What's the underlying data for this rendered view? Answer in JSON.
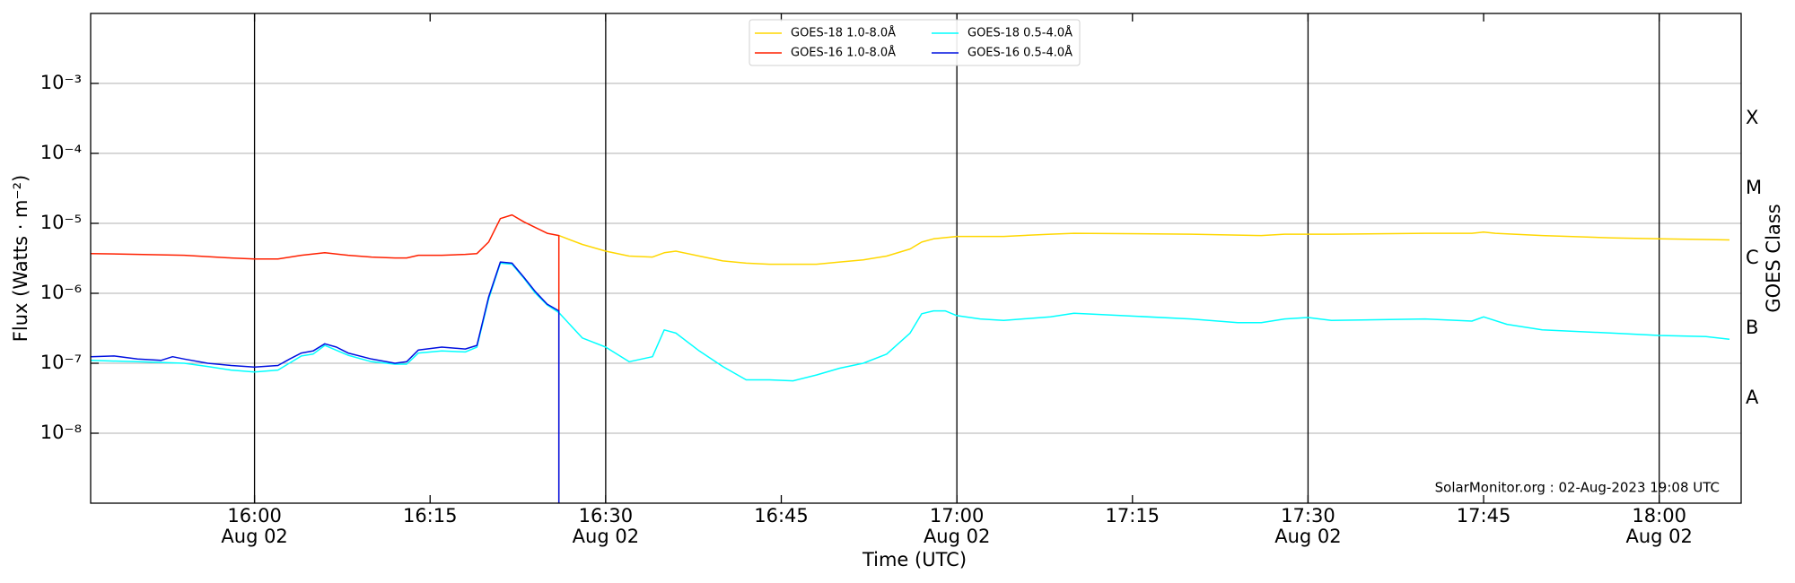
{
  "chart_data": {
    "type": "line",
    "xlabel": "Time (UTC)",
    "ylabel": "Flux (Watts · m⁻²)",
    "y2label": "GOES Class",
    "annotation": "SolarMonitor.org : 02-Aug-2023 19:08 UTC",
    "log_y": true,
    "grid": true,
    "legend": "upper center",
    "xlim": [
      "15:46",
      "18:07"
    ],
    "xticks": [
      "16:00",
      "16:15",
      "16:30",
      "16:45",
      "17:00",
      "17:15",
      "17:30",
      "17:45",
      "18:00"
    ],
    "xtick_dates": [
      "Aug 02",
      null,
      "Aug 02",
      null,
      "Aug 02",
      null,
      "Aug 02",
      null,
      "Aug 02"
    ],
    "vlines": [
      "16:00",
      "16:30",
      "17:00",
      "17:30",
      "18:00"
    ],
    "ylim": [
      1e-09,
      0.01
    ],
    "yticks": [
      {
        "value": 1e-08,
        "label": "10⁻⁸"
      },
      {
        "value": 1e-07,
        "label": "10⁻⁷"
      },
      {
        "value": 1e-06,
        "label": "10⁻⁶"
      },
      {
        "value": 1e-05,
        "label": "10⁻⁵"
      },
      {
        "value": 0.0001,
        "label": "10⁻⁴"
      },
      {
        "value": 0.001,
        "label": "10⁻³"
      }
    ],
    "y2lim": [
      1e-09,
      0.01
    ],
    "y2ticks": [
      {
        "value": 3.16e-08,
        "label": "A"
      },
      {
        "value": 3.16e-07,
        "label": "B"
      },
      {
        "value": 3.16e-06,
        "label": "C"
      },
      {
        "value": 3.16e-05,
        "label": "M"
      },
      {
        "value": 0.000316,
        "label": "X"
      }
    ],
    "series": [
      {
        "name": "GOES-18 1.0-8.0Å",
        "color": "#ffd700",
        "x": [
          "16:26",
          "16:28",
          "16:30",
          "16:32",
          "16:34",
          "16:35",
          "16:36",
          "16:38",
          "16:40",
          "16:42",
          "16:44",
          "16:48",
          "16:50",
          "16:52",
          "16:54",
          "16:56",
          "16:57",
          "16:58",
          "17:00",
          "17:04",
          "17:08",
          "17:10",
          "17:20",
          "17:26",
          "17:28",
          "17:32",
          "17:40",
          "17:44",
          "17:45",
          "17:46",
          "17:50",
          "17:56",
          "18:00",
          "18:06"
        ],
        "values": [
          6.7e-06,
          5e-06,
          4e-06,
          3.4e-06,
          3.3e-06,
          3.8e-06,
          4e-06,
          3.4e-06,
          2.9e-06,
          2.7e-06,
          2.6e-06,
          2.6e-06,
          2.8e-06,
          3e-06,
          3.4e-06,
          4.3e-06,
          5.4e-06,
          6e-06,
          6.5e-06,
          6.5e-06,
          7e-06,
          7.2e-06,
          7e-06,
          6.7e-06,
          7e-06,
          7e-06,
          7.2e-06,
          7.2e-06,
          7.5e-06,
          7.2e-06,
          6.7e-06,
          6.2e-06,
          6e-06,
          5.8e-06
        ]
      },
      {
        "name": "GOES-16 1.0-8.0Å",
        "color": "#ff2000",
        "x": [
          "15:46",
          "15:50",
          "15:54",
          "15:58",
          "16:00",
          "16:02",
          "16:04",
          "16:06",
          "16:08",
          "16:10",
          "16:12",
          "16:13",
          "16:14",
          "16:16",
          "16:18",
          "16:19",
          "16:20",
          "16:21",
          "16:22",
          "16:23",
          "16:24",
          "16:25",
          "16:26",
          "16:26"
        ],
        "values": [
          3.7e-06,
          3.6e-06,
          3.5e-06,
          3.2e-06,
          3.1e-06,
          3.1e-06,
          3.5e-06,
          3.8e-06,
          3.5e-06,
          3.3e-06,
          3.2e-06,
          3.2e-06,
          3.5e-06,
          3.5e-06,
          3.6e-06,
          3.7e-06,
          5.4e-06,
          1.17e-05,
          1.32e-05,
          1.05e-05,
          8.7e-06,
          7.2e-06,
          6.7e-06,
          1e-10
        ]
      },
      {
        "name": "GOES-18 0.5-4.0Å",
        "color": "#00ffff",
        "x": [
          "15:46",
          "15:50",
          "15:54",
          "15:56",
          "15:58",
          "16:00",
          "16:02",
          "16:04",
          "16:05",
          "16:06",
          "16:08",
          "16:10",
          "16:12",
          "16:13",
          "16:14",
          "16:16",
          "16:18",
          "16:19",
          "16:20",
          "16:21",
          "16:22",
          "16:23",
          "16:24",
          "16:25",
          "16:26",
          "16:28",
          "16:30",
          "16:32",
          "16:34",
          "16:35",
          "16:36",
          "16:38",
          "16:40",
          "16:42",
          "16:44",
          "16:46",
          "16:48",
          "16:50",
          "16:52",
          "16:54",
          "16:56",
          "16:57",
          "16:58",
          "16:59",
          "17:00",
          "17:02",
          "17:04",
          "17:08",
          "17:10",
          "17:12",
          "17:20",
          "17:24",
          "17:26",
          "17:28",
          "17:30",
          "17:32",
          "17:40",
          "17:44",
          "17:45",
          "17:47",
          "17:50",
          "17:56",
          "18:00",
          "18:04",
          "18:06"
        ],
        "values": [
          1.1e-07,
          1.05e-07,
          1e-07,
          9e-08,
          8e-08,
          7.5e-08,
          8e-08,
          1.27e-07,
          1.35e-07,
          1.8e-07,
          1.3e-07,
          1.05e-07,
          9.7e-08,
          9.7e-08,
          1.4e-07,
          1.5e-07,
          1.45e-07,
          1.7e-07,
          8.2e-07,
          2.7e-06,
          2.6e-06,
          1.65e-06,
          1e-06,
          6.8e-07,
          5.3e-07,
          2.3e-07,
          1.7e-07,
          1.05e-07,
          1.24e-07,
          3e-07,
          2.7e-07,
          1.5e-07,
          9e-08,
          5.8e-08,
          5.8e-08,
          5.6e-08,
          6.8e-08,
          8.5e-08,
          1e-07,
          1.35e-07,
          2.7e-07,
          5.1e-07,
          5.6e-07,
          5.6e-07,
          4.8e-07,
          4.3e-07,
          4.1e-07,
          4.6e-07,
          5.2e-07,
          5e-07,
          4.3e-07,
          3.8e-07,
          3.8e-07,
          4.3e-07,
          4.5e-07,
          4.1e-07,
          4.3e-07,
          4e-07,
          4.6e-07,
          3.6e-07,
          3e-07,
          2.7e-07,
          2.5e-07,
          2.4e-07,
          2.2e-07
        ]
      },
      {
        "name": "GOES-16 0.5-4.0Å",
        "color": "#0010e0",
        "x": [
          "15:46",
          "15:48",
          "15:50",
          "15:52",
          "15:53",
          "15:54",
          "15:56",
          "15:58",
          "16:00",
          "16:02",
          "16:03",
          "16:04",
          "16:05",
          "16:06",
          "16:07",
          "16:08",
          "16:10",
          "16:12",
          "16:13",
          "16:14",
          "16:16",
          "16:18",
          "16:19",
          "16:20",
          "16:21",
          "16:22",
          "16:23",
          "16:24",
          "16:25",
          "16:26",
          "16:26"
        ],
        "values": [
          1.24e-07,
          1.27e-07,
          1.15e-07,
          1.1e-07,
          1.24e-07,
          1.15e-07,
          1e-07,
          9.3e-08,
          8.8e-08,
          9.3e-08,
          1.15e-07,
          1.4e-07,
          1.5e-07,
          1.9e-07,
          1.7e-07,
          1.4e-07,
          1.15e-07,
          1e-07,
          1.05e-07,
          1.55e-07,
          1.7e-07,
          1.6e-07,
          1.8e-07,
          8.8e-07,
          2.8e-06,
          2.7e-06,
          1.7e-06,
          1.05e-06,
          7e-07,
          5.6e-07,
          1e-10
        ]
      }
    ]
  }
}
